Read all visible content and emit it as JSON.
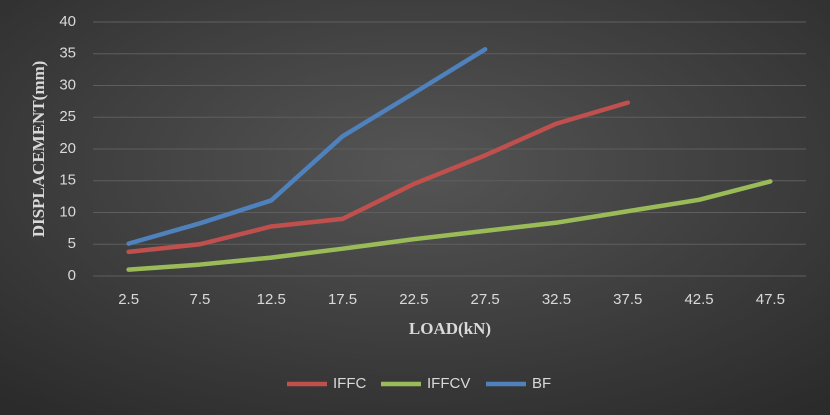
{
  "chart_data": {
    "type": "line",
    "categories": [
      "2.5",
      "7.5",
      "12.5",
      "17.5",
      "22.5",
      "27.5",
      "32.5",
      "37.5",
      "42.5",
      "47.5"
    ],
    "series": [
      {
        "name": "IFFC",
        "color": "#c0504d",
        "values": [
          3.8,
          5,
          7.8,
          9,
          14.5,
          19,
          24,
          27.3,
          null,
          null
        ]
      },
      {
        "name": "IFFCV",
        "color": "#9bbb59",
        "values": [
          1,
          1.8,
          2.9,
          4.3,
          5.8,
          7.1,
          8.4,
          10.2,
          12,
          14.9
        ]
      },
      {
        "name": "BF",
        "color": "#4f81bd",
        "values": [
          5.1,
          8.3,
          11.9,
          22,
          28.8,
          35.7,
          null,
          null,
          null,
          null
        ]
      }
    ],
    "xlabel": "LOAD(kN)",
    "ylabel": "DISPLACEMENT(mm)",
    "ylim": [
      0,
      40
    ],
    "yticks": [
      0,
      5,
      10,
      15,
      20,
      25,
      30,
      35,
      40
    ],
    "grid": true,
    "legend": "bottom"
  }
}
